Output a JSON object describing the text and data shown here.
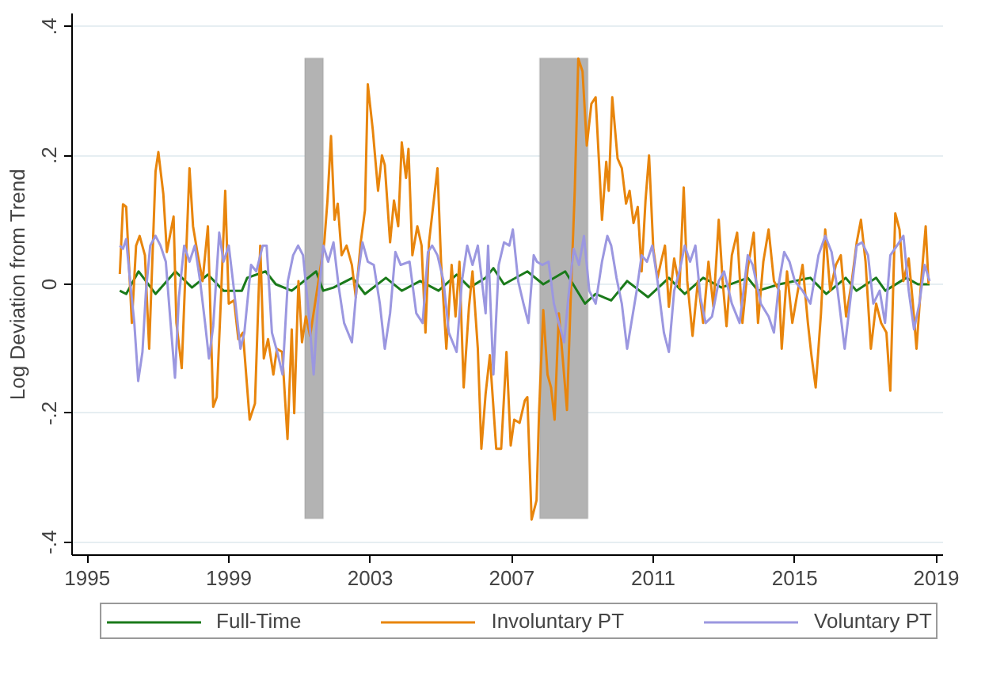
{
  "chart_data": {
    "type": "line",
    "ylabel": "Log Deviation from Trend",
    "xlim": [
      1994.57,
      2019.19
    ],
    "ylim": [
      -0.42,
      0.42
    ],
    "xticks": [
      1995,
      1999,
      2003,
      2007,
      2011,
      2015,
      2019
    ],
    "yticks": [
      {
        "value": -0.4,
        "label": "-.4"
      },
      {
        "value": -0.2,
        "label": "-.2"
      },
      {
        "value": 0,
        "label": "0"
      },
      {
        "value": 0.2,
        "label": ".2"
      },
      {
        "value": 0.4,
        "label": ".4"
      }
    ],
    "grid": "y",
    "legend": "bottom",
    "line_style": "solid",
    "bands": [
      {
        "axis": "x",
        "from": 2001.15,
        "to": 2001.67,
        "color": "#b3b3b3"
      },
      {
        "axis": "x",
        "from": 2007.79,
        "to": 2009.15,
        "color": "#b3b3b3"
      }
    ],
    "series": [
      {
        "name": "Full-Time",
        "color": "#1a7a1a",
        "x": [
          1995.92,
          1996.1,
          1996.45,
          1996.93,
          1997.49,
          1997.96,
          1998.41,
          1998.85,
          1999.37,
          1999.52,
          2000.04,
          2000.33,
          2000.78,
          2001.47,
          2001.67,
          2001.96,
          2002.5,
          2002.85,
          2003.44,
          2003.89,
          2004.41,
          2004.93,
          2005.44,
          2005.81,
          2006.26,
          2006.48,
          2006.78,
          2007.44,
          2007.89,
          2008.51,
          2009.07,
          2009.37,
          2009.81,
          2010.26,
          2010.85,
          2011.44,
          2011.89,
          2012.41,
          2012.93,
          2013.67,
          2013.96,
          2014.56,
          2015.44,
          2015.89,
          2016.44,
          2016.74,
          2017.3,
          2017.56,
          2018.15,
          2018.48,
          2018.81
        ],
        "values": [
          -0.01,
          -0.015,
          0.02,
          -0.015,
          0.02,
          -0.005,
          0.015,
          -0.01,
          -0.01,
          0.01,
          0.02,
          0.0,
          -0.01,
          0.02,
          -0.01,
          -0.005,
          0.01,
          -0.015,
          0.01,
          -0.01,
          0.005,
          -0.01,
          0.015,
          -0.005,
          0.01,
          0.025,
          0.0,
          0.02,
          0.0,
          0.02,
          -0.03,
          -0.015,
          -0.025,
          0.005,
          -0.02,
          0.01,
          -0.015,
          0.01,
          -0.005,
          0.01,
          -0.01,
          0.0,
          0.01,
          -0.015,
          0.01,
          -0.01,
          0.01,
          -0.01,
          0.01,
          0.0,
          0.0
        ]
      },
      {
        "name": "Involuntary PT",
        "color": "#e8850c",
        "x": [
          1995.92,
          1996.01,
          1996.1,
          1996.26,
          1996.38,
          1996.48,
          1996.63,
          1996.75,
          1996.93,
          1997.01,
          1997.15,
          1997.25,
          1997.44,
          1997.52,
          1997.67,
          1997.89,
          1997.99,
          1998.11,
          1998.26,
          1998.41,
          1998.56,
          1998.66,
          1998.78,
          1998.9,
          1999.0,
          1999.15,
          1999.27,
          1999.4,
          1999.59,
          1999.74,
          1999.89,
          1999.99,
          2000.11,
          2000.26,
          2000.36,
          2000.51,
          2000.66,
          2000.78,
          2000.85,
          2000.97,
          2001.07,
          2001.18,
          2001.3,
          2001.7,
          2001.79,
          2001.89,
          2001.99,
          2002.08,
          2002.19,
          2002.33,
          2002.48,
          2002.59,
          2002.73,
          2002.85,
          2002.93,
          2003.07,
          2003.22,
          2003.33,
          2003.41,
          2003.56,
          2003.67,
          2003.79,
          2003.89,
          2004.01,
          2004.08,
          2004.19,
          2004.33,
          2004.45,
          2004.56,
          2004.66,
          2004.9,
          2005.0,
          2005.15,
          2005.3,
          2005.41,
          2005.52,
          2005.64,
          2005.79,
          2005.89,
          2006.04,
          2006.14,
          2006.26,
          2006.38,
          2006.56,
          2006.7,
          2006.85,
          2006.97,
          2007.07,
          2007.22,
          2007.37,
          2007.44,
          2007.56,
          2007.7,
          2007.77,
          2007.89,
          2008.01,
          2008.11,
          2008.21,
          2008.33,
          2008.44,
          2008.56,
          2008.66,
          2008.78,
          2008.88,
          2009.0,
          2009.12,
          2009.25,
          2009.37,
          2009.55,
          2009.67,
          2009.74,
          2009.84,
          2009.99,
          2010.11,
          2010.23,
          2010.33,
          2010.44,
          2010.56,
          2010.67,
          2010.78,
          2010.88,
          2011.0,
          2011.12,
          2011.22,
          2011.33,
          2011.44,
          2011.59,
          2011.74,
          2011.86,
          2011.96,
          2012.11,
          2012.26,
          2012.41,
          2012.56,
          2012.7,
          2012.85,
          2012.96,
          2013.07,
          2013.22,
          2013.37,
          2013.52,
          2013.67,
          2013.84,
          2013.96,
          2014.11,
          2014.26,
          2014.41,
          2014.56,
          2014.63,
          2014.78,
          2014.93,
          2015.07,
          2015.22,
          2015.37,
          2015.47,
          2015.59,
          2015.74,
          2015.86,
          2016.0,
          2016.16,
          2016.3,
          2016.45,
          2016.6,
          2016.75,
          2016.87,
          2017.0,
          2017.15,
          2017.3,
          2017.44,
          2017.59,
          2017.7,
          2017.84,
          2017.96,
          2018.07,
          2018.22,
          2018.33,
          2018.44,
          2018.58,
          2018.7,
          2018.78
        ],
        "values": [
          0.016,
          0.124,
          0.12,
          -0.06,
          0.06,
          0.075,
          0.045,
          -0.1,
          0.175,
          0.205,
          0.14,
          0.05,
          0.105,
          -0.06,
          -0.13,
          0.18,
          0.09,
          0.05,
          0.005,
          0.09,
          -0.19,
          -0.175,
          -0.02,
          0.145,
          -0.03,
          -0.025,
          -0.085,
          -0.075,
          -0.21,
          -0.185,
          0.06,
          -0.115,
          -0.085,
          -0.14,
          -0.1,
          -0.105,
          -0.24,
          -0.07,
          -0.2,
          0.005,
          -0.09,
          -0.05,
          -0.08,
          0.065,
          0.13,
          0.23,
          0.1,
          0.125,
          0.045,
          0.06,
          0.03,
          -0.02,
          0.065,
          0.115,
          0.31,
          0.24,
          0.145,
          0.2,
          0.185,
          0.065,
          0.13,
          0.09,
          0.22,
          0.165,
          0.21,
          0.045,
          0.09,
          0.06,
          -0.075,
          0.065,
          0.18,
          0.035,
          -0.1,
          0.03,
          -0.05,
          0.035,
          -0.16,
          -0.035,
          0.02,
          -0.1,
          -0.255,
          -0.17,
          -0.11,
          -0.255,
          -0.255,
          -0.105,
          -0.25,
          -0.21,
          -0.215,
          -0.18,
          -0.175,
          -0.365,
          -0.335,
          -0.2,
          -0.04,
          -0.14,
          -0.16,
          -0.21,
          -0.045,
          -0.115,
          -0.195,
          -0.03,
          0.145,
          0.35,
          0.33,
          0.215,
          0.28,
          0.29,
          0.1,
          0.19,
          0.145,
          0.29,
          0.195,
          0.18,
          0.125,
          0.145,
          0.095,
          0.12,
          0.02,
          0.13,
          0.2,
          0.055,
          0.01,
          0.035,
          0.06,
          -0.035,
          0.04,
          -0.005,
          0.15,
          0.005,
          -0.08,
          0.005,
          -0.06,
          0.035,
          -0.035,
          0.1,
          0.005,
          -0.065,
          0.045,
          0.08,
          -0.06,
          0.025,
          0.08,
          -0.06,
          0.035,
          0.085,
          0.005,
          -0.01,
          -0.1,
          0.02,
          -0.06,
          -0.015,
          0.03,
          -0.06,
          -0.11,
          -0.16,
          -0.045,
          0.085,
          -0.01,
          0.03,
          0.045,
          -0.05,
          0.0,
          0.065,
          0.1,
          0.035,
          -0.1,
          -0.03,
          -0.06,
          -0.075,
          -0.165,
          0.11,
          0.085,
          0.005,
          0.04,
          -0.025,
          -0.1,
          0.01,
          0.09,
          0.0
        ]
      },
      {
        "name": "Voluntary PT",
        "color": "#9b97e0",
        "x": [
          1995.92,
          1996.01,
          1996.1,
          1996.21,
          1996.33,
          1996.44,
          1996.56,
          1996.66,
          1996.78,
          1996.93,
          1997.07,
          1997.22,
          1997.34,
          1997.48,
          1997.59,
          1997.74,
          1997.89,
          1998.04,
          1998.19,
          1998.33,
          1998.44,
          1998.56,
          1998.73,
          1998.85,
          1999.0,
          1999.15,
          1999.33,
          1999.44,
          1999.63,
          1999.78,
          1999.96,
          2000.07,
          2000.22,
          2000.37,
          2000.52,
          2000.67,
          2000.82,
          2000.96,
          2001.1,
          2001.26,
          2001.4,
          2001.52,
          2001.67,
          2001.81,
          2001.96,
          2002.11,
          2002.26,
          2002.48,
          2002.63,
          2002.78,
          2002.93,
          2003.1,
          2003.27,
          2003.41,
          2003.56,
          2003.71,
          2003.86,
          2004.11,
          2004.3,
          2004.48,
          2004.63,
          2004.75,
          2004.9,
          2005.07,
          2005.22,
          2005.44,
          2005.59,
          2005.74,
          2005.89,
          2006.04,
          2006.26,
          2006.33,
          2006.48,
          2006.63,
          2006.78,
          2006.93,
          2007.03,
          2007.18,
          2007.33,
          2007.47,
          2007.62,
          2007.71,
          2007.86,
          2008.04,
          2008.19,
          2008.33,
          2008.48,
          2008.6,
          2008.75,
          2008.9,
          2009.04,
          2009.19,
          2009.37,
          2009.55,
          2009.7,
          2009.81,
          2009.96,
          2010.11,
          2010.26,
          2010.38,
          2010.53,
          2010.67,
          2010.82,
          2010.97,
          2011.12,
          2011.3,
          2011.44,
          2011.59,
          2011.74,
          2011.89,
          2012.04,
          2012.19,
          2012.33,
          2012.48,
          2012.66,
          2012.85,
          2013.0,
          2013.22,
          2013.44,
          2013.67,
          2013.81,
          2014.04,
          2014.26,
          2014.41,
          2014.56,
          2014.7,
          2014.85,
          2015.0,
          2015.22,
          2015.44,
          2015.67,
          2015.86,
          2016.04,
          2016.21,
          2016.41,
          2016.6,
          2016.75,
          2016.9,
          2017.07,
          2017.22,
          2017.4,
          2017.55,
          2017.7,
          2017.89,
          2018.07,
          2018.22,
          2018.37,
          2018.52,
          2018.67,
          2018.81
        ],
        "values": [
          0.06,
          0.055,
          0.07,
          0.005,
          -0.06,
          -0.15,
          -0.105,
          -0.01,
          0.06,
          0.075,
          0.06,
          0.035,
          -0.05,
          -0.145,
          -0.02,
          0.06,
          0.035,
          0.06,
          0.005,
          -0.06,
          -0.115,
          -0.065,
          0.08,
          0.035,
          0.06,
          -0.01,
          -0.1,
          -0.075,
          0.03,
          0.02,
          0.06,
          0.06,
          -0.075,
          -0.105,
          -0.14,
          0.005,
          0.045,
          0.06,
          0.045,
          -0.045,
          -0.14,
          -0.03,
          0.06,
          0.035,
          0.065,
          -0.005,
          -0.06,
          -0.09,
          0.005,
          0.065,
          0.035,
          0.03,
          -0.03,
          -0.1,
          -0.045,
          0.05,
          0.03,
          0.035,
          -0.045,
          -0.06,
          0.05,
          0.06,
          0.045,
          0.005,
          -0.075,
          -0.105,
          0.005,
          0.06,
          0.03,
          0.06,
          -0.045,
          0.06,
          -0.14,
          0.03,
          0.065,
          0.06,
          0.085,
          0.005,
          -0.03,
          -0.06,
          0.045,
          0.035,
          0.03,
          0.035,
          -0.03,
          -0.06,
          -0.09,
          -0.02,
          0.055,
          0.03,
          0.075,
          -0.01,
          -0.03,
          0.035,
          0.075,
          0.06,
          0.01,
          -0.03,
          -0.1,
          -0.06,
          -0.01,
          0.045,
          0.035,
          0.06,
          0.005,
          -0.075,
          -0.105,
          -0.01,
          0.02,
          0.06,
          0.035,
          0.06,
          -0.02,
          -0.06,
          -0.05,
          0.005,
          0.02,
          -0.03,
          -0.06,
          0.045,
          0.03,
          -0.03,
          -0.05,
          -0.075,
          0.005,
          0.05,
          0.035,
          0.005,
          -0.01,
          -0.03,
          0.045,
          0.075,
          0.05,
          -0.01,
          -0.1,
          -0.01,
          0.06,
          0.065,
          0.045,
          -0.03,
          -0.01,
          -0.06,
          0.045,
          0.06,
          0.075,
          -0.01,
          -0.07,
          -0.03,
          0.03,
          0.005
        ]
      }
    ]
  }
}
